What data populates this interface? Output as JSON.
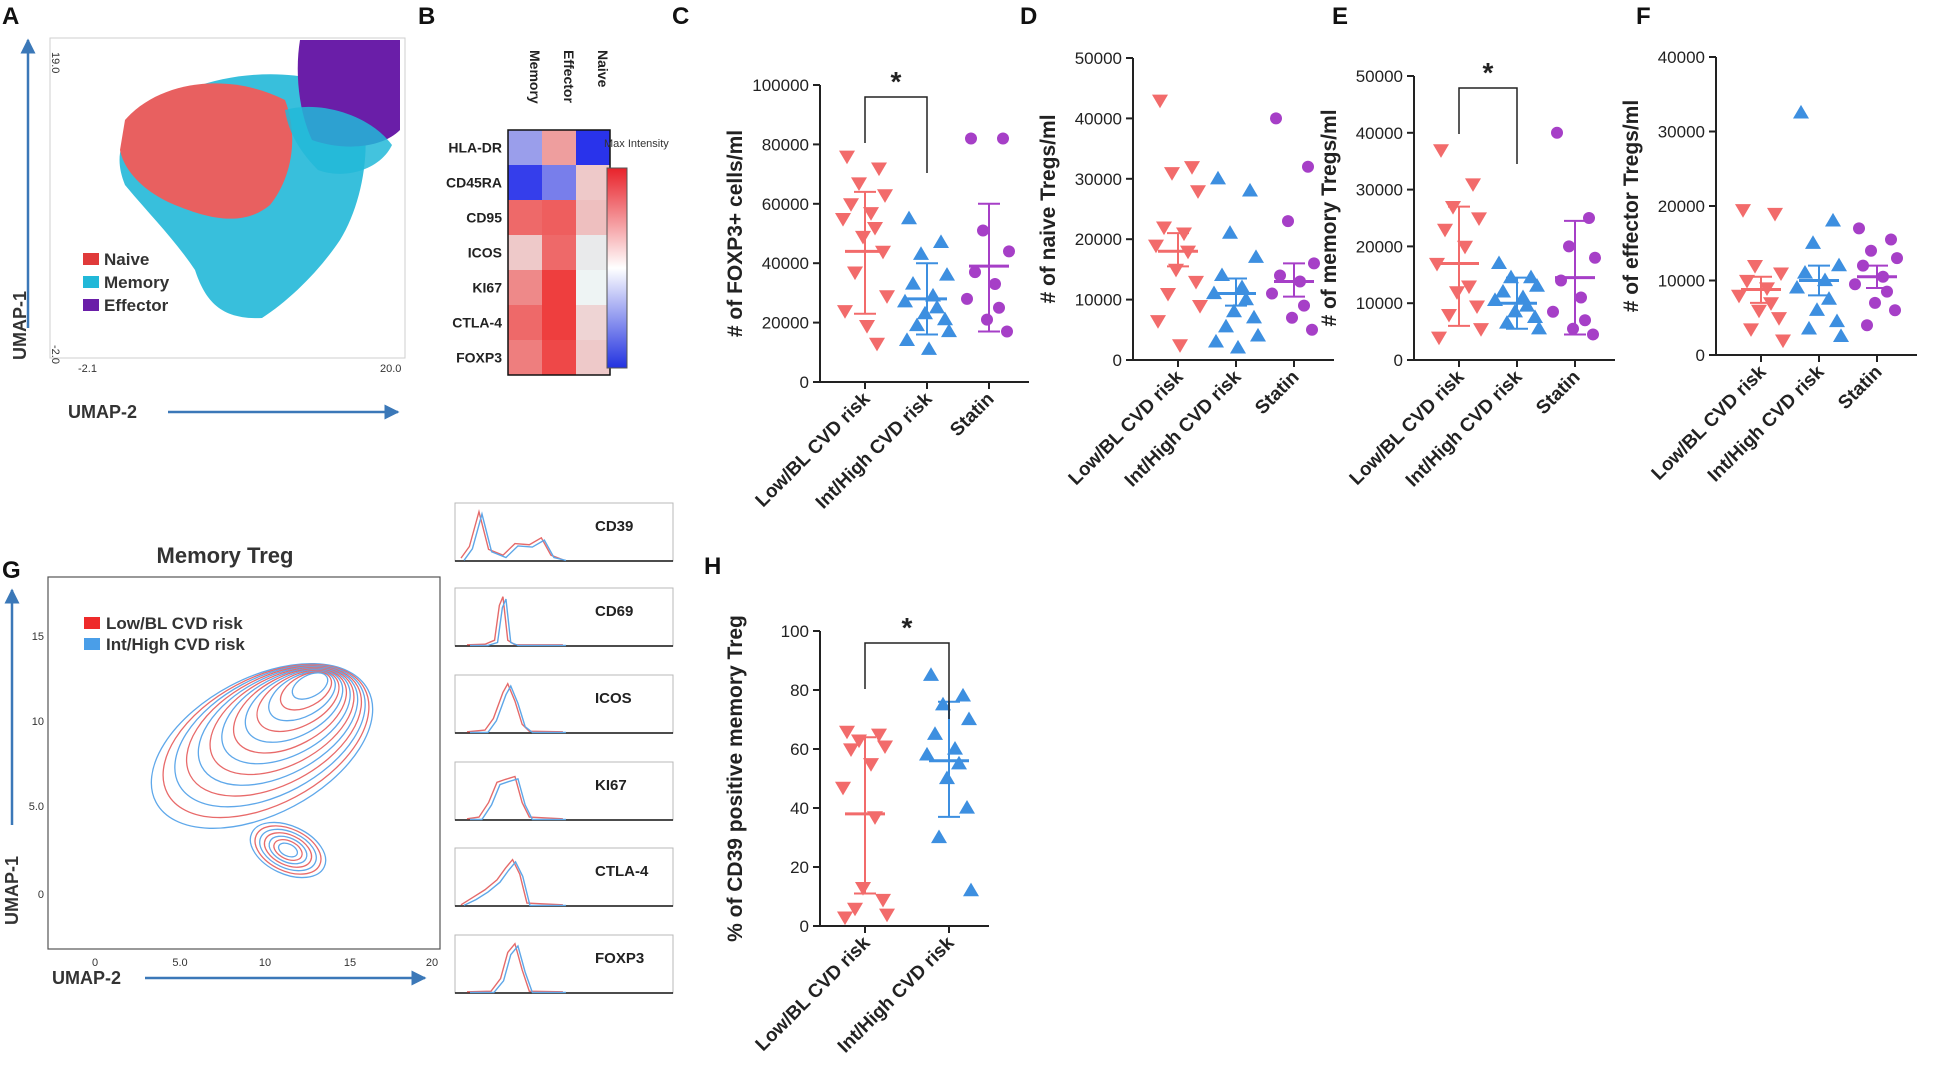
{
  "panels": {
    "A": "A",
    "B": "B",
    "C": "C",
    "D": "D",
    "E": "E",
    "F": "F",
    "G": "G",
    "H": "H"
  },
  "colors": {
    "low": "#f26b6b",
    "int": "#3d8fe0",
    "statin": "#a63fc7",
    "naive": "#e05050",
    "memory": "#22b8d8",
    "effector": "#6a1ea8",
    "axis": "#222222"
  },
  "umap_a": {
    "xlabel": "UMAP-2",
    "ylabel": "UMAP-1",
    "x_min": "-2.1",
    "x_max": "20.0",
    "y_min": "-2.0",
    "y_max": "19.0",
    "legend": [
      "Naive",
      "Memory",
      "Effector"
    ]
  },
  "heatmap": {
    "columns": [
      "Memory",
      "Effector",
      "Naive"
    ],
    "rows": [
      "HLA-DR",
      "CD45RA",
      "CD95",
      "ICOS",
      "KI67",
      "CTLA-4",
      "FOXP3"
    ],
    "colorbar_label": "Max Intensity",
    "values": [
      [
        -0.45,
        0.45,
        -0.95
      ],
      [
        -0.9,
        -0.6,
        0.25
      ],
      [
        0.7,
        0.75,
        0.3
      ],
      [
        0.25,
        0.7,
        -0.1
      ],
      [
        0.55,
        0.9,
        0.05
      ],
      [
        0.7,
        0.9,
        0.2
      ],
      [
        0.6,
        0.85,
        0.25
      ]
    ]
  },
  "umap_g": {
    "title": "Memory Treg",
    "xlabel": "UMAP-2",
    "ylabel": "UMAP-1",
    "xticks": [
      "0",
      "5.0",
      "10",
      "15",
      "20"
    ],
    "yticks": [
      "0",
      "5.0",
      "10",
      "15"
    ],
    "legend": [
      "Low/BL CVD risk",
      "Int/High CVD risk"
    ]
  },
  "histograms": [
    "CD39",
    "CD69",
    "ICOS",
    "KI67",
    "CTLA-4",
    "FOXP3"
  ],
  "chart_data": [
    {
      "id": "C",
      "type": "scatter",
      "ylabel": "# of FOXP3+ cells/ml",
      "yticks": [
        "0",
        "20000",
        "40000",
        "60000",
        "80000",
        "100000"
      ],
      "ylim": [
        0,
        100000
      ],
      "categories": [
        "Low/BL CVD risk",
        "Int/High CVD risk",
        "Statin"
      ],
      "significance": {
        "between": [
          0,
          1
        ],
        "label": "*"
      },
      "series": [
        {
          "name": "Low/BL CVD risk",
          "marker": "triangle-down",
          "mean": 44000,
          "sd_low": 23000,
          "sd_high": 64000,
          "values": [
            76000,
            72000,
            67000,
            63000,
            60000,
            57000,
            55000,
            52000,
            49000,
            44000,
            37000,
            29000,
            24000,
            19000,
            13000
          ]
        },
        {
          "name": "Int/High CVD risk",
          "marker": "triangle-up",
          "mean": 28000,
          "sd_low": 16000,
          "sd_high": 40000,
          "values": [
            55000,
            47000,
            43000,
            36000,
            33000,
            29000,
            27000,
            25000,
            23000,
            21000,
            19000,
            17000,
            14000,
            11000
          ]
        },
        {
          "name": "Statin",
          "marker": "circle",
          "mean": 39000,
          "sd_low": 17000,
          "sd_high": 60000,
          "values": [
            82000,
            82000,
            51000,
            44000,
            37000,
            33000,
            28000,
            25000,
            21000,
            17000
          ]
        }
      ]
    },
    {
      "id": "D",
      "type": "scatter",
      "ylabel": "# of naive Tregs/ml",
      "yticks": [
        "0",
        "10000",
        "20000",
        "30000",
        "40000",
        "50000"
      ],
      "ylim": [
        0,
        50000
      ],
      "categories": [
        "Low/BL CVD risk",
        "Int/High CVD risk",
        "Statin"
      ],
      "series": [
        {
          "name": "Low/BL CVD risk",
          "marker": "triangle-down",
          "mean": 18000,
          "sd_low": 15500,
          "sd_high": 21000,
          "values": [
            43000,
            32000,
            31000,
            28000,
            22000,
            21000,
            19000,
            18000,
            15000,
            13000,
            11000,
            9000,
            6500,
            2500
          ]
        },
        {
          "name": "Int/High CVD risk",
          "marker": "triangle-up",
          "mean": 11000,
          "sd_low": 9000,
          "sd_high": 13500,
          "values": [
            30000,
            28000,
            21000,
            17000,
            14000,
            12000,
            11000,
            10000,
            8000,
            7000,
            5500,
            4000,
            3000,
            2000
          ]
        },
        {
          "name": "Statin",
          "marker": "circle",
          "mean": 13000,
          "sd_low": 10500,
          "sd_high": 16000,
          "values": [
            40000,
            32000,
            23000,
            16000,
            14000,
            13000,
            11000,
            9000,
            7000,
            5000
          ]
        }
      ]
    },
    {
      "id": "E",
      "type": "scatter",
      "ylabel": "# of memory Tregs/ml",
      "yticks": [
        "0",
        "10000",
        "20000",
        "30000",
        "40000",
        "50000"
      ],
      "ylim": [
        0,
        50000
      ],
      "categories": [
        "Low/BL CVD risk",
        "Int/High CVD risk",
        "Statin"
      ],
      "significance": {
        "between": [
          0,
          1
        ],
        "label": "*"
      },
      "series": [
        {
          "name": "Low/BL CVD risk",
          "marker": "triangle-down",
          "mean": 17000,
          "sd_low": 6000,
          "sd_high": 27000,
          "values": [
            37000,
            31000,
            27000,
            25000,
            23000,
            20000,
            17000,
            13000,
            12000,
            9500,
            8000,
            5500,
            4000
          ]
        },
        {
          "name": "Int/High CVD risk",
          "marker": "triangle-up",
          "mean": 10000,
          "sd_low": 5500,
          "sd_high": 14500,
          "values": [
            17000,
            14500,
            14500,
            13000,
            12000,
            11000,
            10500,
            9500,
            8500,
            7500,
            6500,
            5500
          ]
        },
        {
          "name": "Statin",
          "marker": "circle",
          "mean": 14500,
          "sd_low": 4500,
          "sd_high": 24500,
          "values": [
            40000,
            25000,
            20000,
            18000,
            14000,
            11000,
            8500,
            7000,
            5500,
            4500
          ]
        }
      ]
    },
    {
      "id": "F",
      "type": "scatter",
      "ylabel": "# of effector Tregs/ml",
      "yticks": [
        "0",
        "10000",
        "20000",
        "30000",
        "40000"
      ],
      "ylim": [
        0,
        40000
      ],
      "categories": [
        "Low/BL CVD risk",
        "Int/High CVD risk",
        "Statin"
      ],
      "series": [
        {
          "name": "Low/BL CVD risk",
          "marker": "triangle-down",
          "mean": 8800,
          "sd_low": 7000,
          "sd_high": 10500,
          "values": [
            19500,
            19000,
            12000,
            11000,
            10000,
            9000,
            8000,
            7000,
            6000,
            5000,
            3500,
            2000
          ]
        },
        {
          "name": "Int/High CVD risk",
          "marker": "triangle-up",
          "mean": 10000,
          "sd_low": 8000,
          "sd_high": 12000,
          "values": [
            32500,
            18000,
            15000,
            12000,
            11000,
            10000,
            9000,
            7500,
            6000,
            4500,
            3500,
            2500
          ]
        },
        {
          "name": "Statin",
          "marker": "circle",
          "mean": 10500,
          "sd_low": 9000,
          "sd_high": 12000,
          "values": [
            17000,
            15500,
            14000,
            13000,
            12000,
            10500,
            9500,
            8500,
            7000,
            6000,
            4000
          ]
        }
      ]
    },
    {
      "id": "H",
      "type": "scatter",
      "ylabel": "% of CD39 positive memory Treg",
      "yticks": [
        "0",
        "20",
        "40",
        "60",
        "80",
        "100"
      ],
      "ylim": [
        0,
        100
      ],
      "categories": [
        "Low/BL CVD risk",
        "Int/High CVD risk"
      ],
      "significance": {
        "between": [
          0,
          1
        ],
        "label": "*"
      },
      "series": [
        {
          "name": "Low/BL CVD risk",
          "marker": "triangle-down",
          "mean": 38,
          "sd_low": 11,
          "sd_high": 64,
          "values": [
            66,
            65,
            63,
            61,
            60,
            55,
            47,
            37,
            13,
            9,
            6,
            4,
            3
          ]
        },
        {
          "name": "Int/High CVD risk",
          "marker": "triangle-up",
          "mean": 56,
          "sd_low": 37,
          "sd_high": 76,
          "values": [
            85,
            78,
            75,
            70,
            65,
            60,
            58,
            55,
            50,
            40,
            30,
            12
          ]
        }
      ]
    }
  ]
}
